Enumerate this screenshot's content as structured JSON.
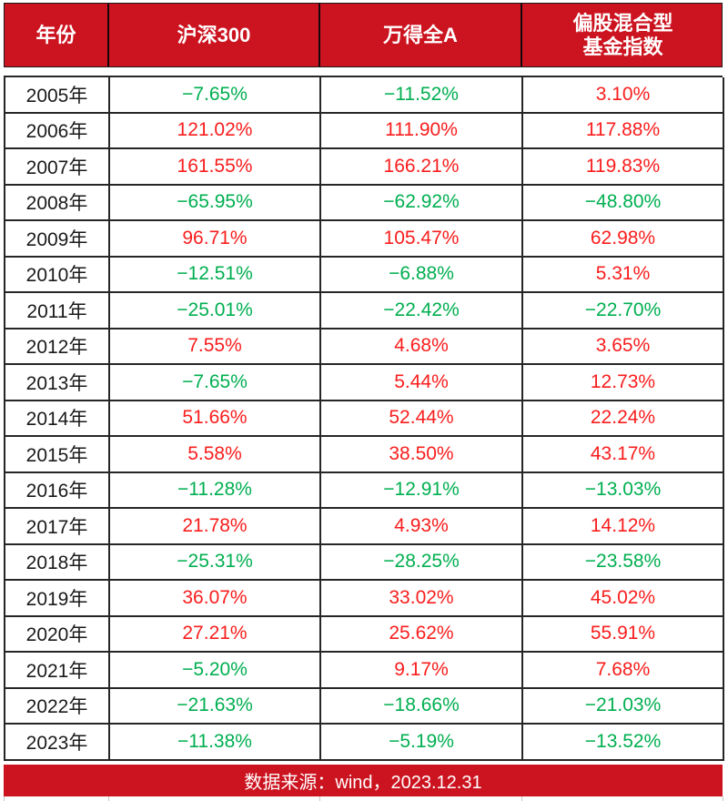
{
  "colors": {
    "header_background": "#cc1420",
    "positive_value": "#fa1d1d",
    "negative_value": "#00af50",
    "grid_border": "#262626",
    "header_text": "#ffffff"
  },
  "header": {
    "col_year": "年份",
    "col_hs300": "沪深300",
    "col_wind_all_a": "万得全A",
    "col_fund_index": "偏股混合型\n基金指数"
  },
  "footer": {
    "source": "数据来源：wind，2023.12.31"
  },
  "chart_data": {
    "type": "table",
    "columns": [
      "年份",
      "沪深300",
      "万得全A",
      "偏股混合型基金指数"
    ],
    "color_rule": "negative values green, positive values red",
    "source_note": "数据来源：wind，2023.12.31",
    "rows": [
      {
        "year": "2005年",
        "values": [
          "−7.65%",
          "−11.52%",
          "3.10%"
        ]
      },
      {
        "year": "2006年",
        "values": [
          "121.02%",
          "111.90%",
          "117.88%"
        ]
      },
      {
        "year": "2007年",
        "values": [
          "161.55%",
          "166.21%",
          "119.83%"
        ]
      },
      {
        "year": "2008年",
        "values": [
          "−65.95%",
          "−62.92%",
          "−48.80%"
        ]
      },
      {
        "year": "2009年",
        "values": [
          "96.71%",
          "105.47%",
          "62.98%"
        ]
      },
      {
        "year": "2010年",
        "values": [
          "−12.51%",
          "−6.88%",
          "5.31%"
        ]
      },
      {
        "year": "2011年",
        "values": [
          "−25.01%",
          "−22.42%",
          "−22.70%"
        ]
      },
      {
        "year": "2012年",
        "values": [
          "7.55%",
          "4.68%",
          "3.65%"
        ]
      },
      {
        "year": "2013年",
        "values": [
          "−7.65%",
          "5.44%",
          "12.73%"
        ]
      },
      {
        "year": "2014年",
        "values": [
          "51.66%",
          "52.44%",
          "22.24%"
        ]
      },
      {
        "year": "2015年",
        "values": [
          "5.58%",
          "38.50%",
          "43.17%"
        ]
      },
      {
        "year": "2016年",
        "values": [
          "−11.28%",
          "−12.91%",
          "−13.03%"
        ]
      },
      {
        "year": "2017年",
        "values": [
          "21.78%",
          "4.93%",
          "14.12%"
        ]
      },
      {
        "year": "2018年",
        "values": [
          "−25.31%",
          "−28.25%",
          "−23.58%"
        ]
      },
      {
        "year": "2019年",
        "values": [
          "36.07%",
          "33.02%",
          "45.02%"
        ]
      },
      {
        "year": "2020年",
        "values": [
          "27.21%",
          "25.62%",
          "55.91%"
        ]
      },
      {
        "year": "2021年",
        "values": [
          "−5.20%",
          "9.17%",
          "7.68%"
        ]
      },
      {
        "year": "2022年",
        "values": [
          "−21.63%",
          "−18.66%",
          "−21.03%"
        ]
      },
      {
        "year": "2023年",
        "values": [
          "−11.38%",
          "−5.19%",
          "−13.52%"
        ]
      }
    ]
  }
}
